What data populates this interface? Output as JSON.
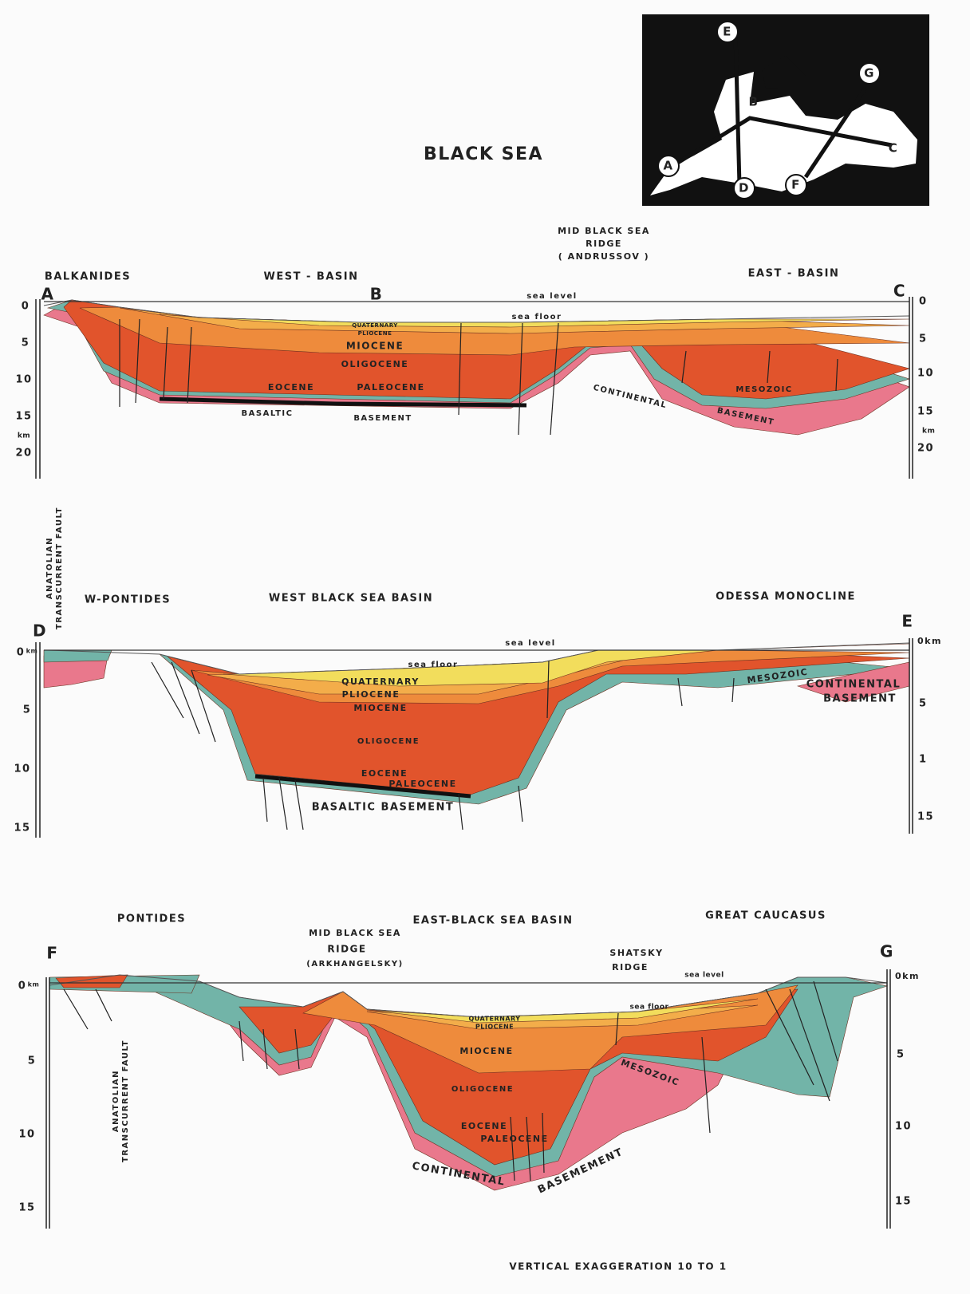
{
  "title": "BLACK SEA",
  "map": {
    "points": [
      "E",
      "G",
      "B",
      "C",
      "A",
      "D",
      "F"
    ]
  },
  "sections": [
    {
      "ridge": [
        "MID BLACK SEA",
        "RIDGE",
        "( ANDRUSSOV )"
      ],
      "regions": [
        "BALKANIDES",
        "WEST - BASIN",
        "EAST - BASIN"
      ],
      "ends": [
        "A",
        "B",
        "C"
      ],
      "sea_level": "sea level",
      "sea_floor": "sea floor",
      "layers": [
        "QUATERNARY",
        "PLIOCENE",
        "MIOCENE",
        "OLIGOCENE",
        "EOCENE",
        "PALEOCENE",
        "BASALTIC",
        "BASEMENT",
        "CONTINENTAL",
        "BASEMENT",
        "MESOZOIC"
      ],
      "left_ticks": [
        "0",
        "5",
        "10",
        "15",
        "km",
        "20"
      ],
      "right_ticks": [
        "0",
        "5",
        "10",
        "15",
        "km",
        "20"
      ]
    },
    {
      "fault": [
        "ANATOLIAN",
        "TRANSCURRENT FAULT"
      ],
      "regions": [
        "W-PONTIDES",
        "WEST BLACK SEA BASIN",
        "ODESSA MONOCLINE"
      ],
      "ends": [
        "D",
        "E"
      ],
      "sea_level": "sea level",
      "sea_floor": "sea floor",
      "layers": [
        "QUATERNARY",
        "PLIOCENE",
        "MIOCENE",
        "OLIGOCENE",
        "EOCENE",
        "PALEOCENE",
        "BASALTIC BASEMENT",
        "MESOZOIC",
        "CONTINENTAL",
        "BASEMENT"
      ],
      "left_ticks": [
        "0",
        "km",
        "5",
        "10",
        "15"
      ],
      "right_ticks": [
        "0km",
        "5",
        "1",
        "15"
      ]
    },
    {
      "regions": [
        "PONTIDES",
        "EAST-BLACK SEA BASIN",
        "GREAT CAUCASUS"
      ],
      "ridge": [
        "MID BLACK SEA",
        "RIDGE",
        "(ARKHANGELSKY)"
      ],
      "ridge2": [
        "SHATSKY",
        "RIDGE"
      ],
      "ends": [
        "F",
        "G"
      ],
      "fault": [
        "ANATOLIAN",
        "TRANSCURRENT FAULT"
      ],
      "sea_level": "sea level",
      "sea_floor": "sea floor",
      "layers": [
        "QUATERNARY",
        "PLIOCENE",
        "MIOCENE",
        "OLIGOCENE",
        "MESOZOIC",
        "EOCENE",
        "PALEOCENE",
        "CONTINENTAL",
        "BASEMEMENT"
      ],
      "left_ticks": [
        "0",
        "km",
        "5",
        "10",
        "15"
      ],
      "right_ticks": [
        "0km",
        "5",
        "10",
        "15"
      ]
    }
  ],
  "footer": "VERTICAL EXAGGERATION 10 TO 1"
}
